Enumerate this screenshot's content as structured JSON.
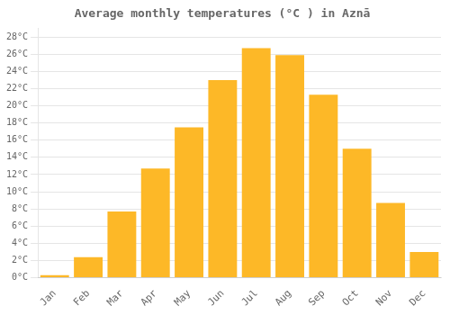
{
  "chart_data": {
    "type": "bar",
    "title": "Average monthly temperatures (°C ) in Aznā",
    "categories": [
      "Jan",
      "Feb",
      "Mar",
      "Apr",
      "May",
      "Jun",
      "Jul",
      "Aug",
      "Sep",
      "Oct",
      "Nov",
      "Dec"
    ],
    "values": [
      0.3,
      2.4,
      7.7,
      12.7,
      17.5,
      23.0,
      26.7,
      25.9,
      21.3,
      15.0,
      8.7,
      3.0
    ],
    "color": "#FDB827",
    "ylim": [
      0,
      29
    ],
    "yticks": [
      {
        "value": 0,
        "label": "0°C"
      },
      {
        "value": 2,
        "label": "2°C"
      },
      {
        "value": 4,
        "label": "4°C"
      },
      {
        "value": 6,
        "label": "6°C"
      },
      {
        "value": 8,
        "label": "8°C"
      },
      {
        "value": 10,
        "label": "10°C"
      },
      {
        "value": 12,
        "label": "12°C"
      },
      {
        "value": 14,
        "label": "14°C"
      },
      {
        "value": 16,
        "label": "16°C"
      },
      {
        "value": 18,
        "label": "18°C"
      },
      {
        "value": 20,
        "label": "20°C"
      },
      {
        "value": 22,
        "label": "22°C"
      },
      {
        "value": 24,
        "label": "24°C"
      },
      {
        "value": 26,
        "label": "26°C"
      },
      {
        "value": 28,
        "label": "28°C"
      }
    ],
    "grid": true
  }
}
